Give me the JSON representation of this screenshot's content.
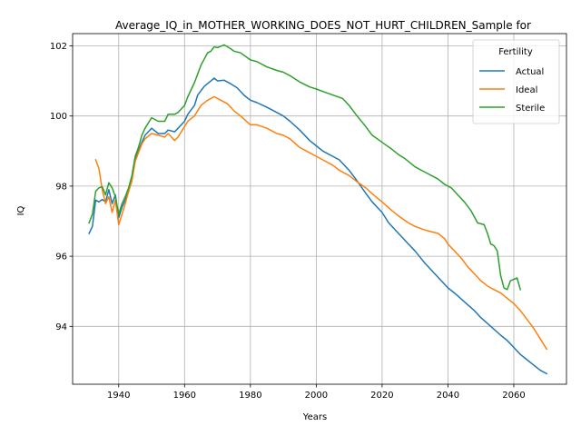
{
  "chart_data": {
    "type": "line",
    "title": "Average_IQ_in_MOTHER_WORKING_DOES_NOT_HURT_CHILDREN_Sample for",
    "xlabel": "Years",
    "ylabel": "IQ",
    "xlim": [
      1926,
      2076
    ],
    "ylim": [
      92.35,
      102.35
    ],
    "xticks": [
      1940,
      1960,
      1980,
      2000,
      2020,
      2040,
      2060
    ],
    "yticks": [
      94,
      96,
      98,
      100,
      102
    ],
    "grid": true,
    "legend": {
      "title": "Fertility",
      "placement": "top-right"
    },
    "series": [
      {
        "name": "Actual",
        "color": "#1f77b4",
        "points": [
          [
            1931,
            96.65
          ],
          [
            1932,
            96.85
          ],
          [
            1933,
            97.6
          ],
          [
            1934,
            97.55
          ],
          [
            1935,
            97.62
          ],
          [
            1936,
            97.55
          ],
          [
            1937,
            97.9
          ],
          [
            1938,
            97.5
          ],
          [
            1939,
            97.75
          ],
          [
            1940,
            97.1
          ],
          [
            1941,
            97.4
          ],
          [
            1942,
            97.6
          ],
          [
            1943,
            97.85
          ],
          [
            1944,
            98.2
          ],
          [
            1945,
            98.8
          ],
          [
            1946,
            99.0
          ],
          [
            1947,
            99.25
          ],
          [
            1948,
            99.45
          ],
          [
            1950,
            99.65
          ],
          [
            1952,
            99.5
          ],
          [
            1954,
            99.5
          ],
          [
            1955,
            99.6
          ],
          [
            1957,
            99.55
          ],
          [
            1958,
            99.65
          ],
          [
            1960,
            99.85
          ],
          [
            1961,
            100.05
          ],
          [
            1963,
            100.3
          ],
          [
            1964,
            100.6
          ],
          [
            1966,
            100.85
          ],
          [
            1968,
            101.0
          ],
          [
            1969,
            101.08
          ],
          [
            1970,
            101.0
          ],
          [
            1972,
            101.02
          ],
          [
            1974,
            100.92
          ],
          [
            1976,
            100.8
          ],
          [
            1978,
            100.6
          ],
          [
            1980,
            100.45
          ],
          [
            1982,
            100.38
          ],
          [
            1985,
            100.25
          ],
          [
            1988,
            100.1
          ],
          [
            1990,
            100.0
          ],
          [
            1992,
            99.85
          ],
          [
            1995,
            99.6
          ],
          [
            1998,
            99.3
          ],
          [
            2000,
            99.15
          ],
          [
            2002,
            99.0
          ],
          [
            2005,
            98.85
          ],
          [
            2007,
            98.75
          ],
          [
            2010,
            98.45
          ],
          [
            2012,
            98.2
          ],
          [
            2015,
            97.8
          ],
          [
            2017,
            97.55
          ],
          [
            2020,
            97.25
          ],
          [
            2022,
            96.95
          ],
          [
            2025,
            96.65
          ],
          [
            2028,
            96.35
          ],
          [
            2030,
            96.15
          ],
          [
            2033,
            95.8
          ],
          [
            2036,
            95.5
          ],
          [
            2038,
            95.3
          ],
          [
            2040,
            95.1
          ],
          [
            2042,
            94.95
          ],
          [
            2045,
            94.7
          ],
          [
            2048,
            94.45
          ],
          [
            2050,
            94.25
          ],
          [
            2053,
            94.0
          ],
          [
            2056,
            93.75
          ],
          [
            2058,
            93.6
          ],
          [
            2060,
            93.4
          ],
          [
            2062,
            93.2
          ],
          [
            2064,
            93.05
          ],
          [
            2066,
            92.9
          ],
          [
            2068,
            92.75
          ],
          [
            2070,
            92.65
          ]
        ]
      },
      {
        "name": "Ideal",
        "color": "#ff7f0e",
        "points": [
          [
            1933,
            98.75
          ],
          [
            1934,
            98.5
          ],
          [
            1935,
            97.9
          ],
          [
            1936,
            97.5
          ],
          [
            1937,
            97.7
          ],
          [
            1938,
            97.25
          ],
          [
            1939,
            97.6
          ],
          [
            1940,
            96.9
          ],
          [
            1941,
            97.2
          ],
          [
            1942,
            97.5
          ],
          [
            1943,
            97.85
          ],
          [
            1944,
            98.15
          ],
          [
            1945,
            98.7
          ],
          [
            1946,
            98.95
          ],
          [
            1947,
            99.2
          ],
          [
            1948,
            99.35
          ],
          [
            1950,
            99.5
          ],
          [
            1952,
            99.45
          ],
          [
            1954,
            99.4
          ],
          [
            1955,
            99.5
          ],
          [
            1957,
            99.3
          ],
          [
            1958,
            99.4
          ],
          [
            1960,
            99.7
          ],
          [
            1961,
            99.85
          ],
          [
            1963,
            100.0
          ],
          [
            1965,
            100.3
          ],
          [
            1967,
            100.45
          ],
          [
            1969,
            100.55
          ],
          [
            1971,
            100.45
          ],
          [
            1973,
            100.35
          ],
          [
            1975,
            100.15
          ],
          [
            1977,
            100.0
          ],
          [
            1980,
            99.75
          ],
          [
            1982,
            99.75
          ],
          [
            1985,
            99.65
          ],
          [
            1988,
            99.5
          ],
          [
            1990,
            99.45
          ],
          [
            1992,
            99.35
          ],
          [
            1995,
            99.1
          ],
          [
            1998,
            98.95
          ],
          [
            2000,
            98.85
          ],
          [
            2002,
            98.75
          ],
          [
            2005,
            98.6
          ],
          [
            2007,
            98.45
          ],
          [
            2010,
            98.3
          ],
          [
            2012,
            98.15
          ],
          [
            2015,
            97.95
          ],
          [
            2018,
            97.7
          ],
          [
            2020,
            97.55
          ],
          [
            2023,
            97.3
          ],
          [
            2025,
            97.15
          ],
          [
            2028,
            96.95
          ],
          [
            2030,
            96.85
          ],
          [
            2033,
            96.75
          ],
          [
            2035,
            96.7
          ],
          [
            2037,
            96.65
          ],
          [
            2039,
            96.5
          ],
          [
            2040,
            96.35
          ],
          [
            2042,
            96.15
          ],
          [
            2044,
            95.95
          ],
          [
            2046,
            95.7
          ],
          [
            2048,
            95.5
          ],
          [
            2050,
            95.3
          ],
          [
            2052,
            95.15
          ],
          [
            2054,
            95.05
          ],
          [
            2056,
            94.95
          ],
          [
            2058,
            94.8
          ],
          [
            2060,
            94.65
          ],
          [
            2062,
            94.45
          ],
          [
            2064,
            94.2
          ],
          [
            2066,
            93.95
          ],
          [
            2068,
            93.65
          ],
          [
            2070,
            93.35
          ]
        ]
      },
      {
        "name": "Sterile",
        "color": "#2ca02c",
        "points": [
          [
            1931,
            96.95
          ],
          [
            1932,
            97.2
          ],
          [
            1933,
            97.85
          ],
          [
            1934,
            97.95
          ],
          [
            1935,
            97.98
          ],
          [
            1936,
            97.75
          ],
          [
            1937,
            98.1
          ],
          [
            1938,
            97.95
          ],
          [
            1939,
            97.7
          ],
          [
            1940,
            97.2
          ],
          [
            1941,
            97.5
          ],
          [
            1942,
            97.7
          ],
          [
            1943,
            97.95
          ],
          [
            1944,
            98.3
          ],
          [
            1945,
            98.85
          ],
          [
            1946,
            99.1
          ],
          [
            1947,
            99.45
          ],
          [
            1948,
            99.65
          ],
          [
            1950,
            99.95
          ],
          [
            1952,
            99.85
          ],
          [
            1954,
            99.85
          ],
          [
            1955,
            100.05
          ],
          [
            1957,
            100.05
          ],
          [
            1958,
            100.1
          ],
          [
            1960,
            100.3
          ],
          [
            1961,
            100.55
          ],
          [
            1963,
            100.95
          ],
          [
            1965,
            101.45
          ],
          [
            1967,
            101.8
          ],
          [
            1968,
            101.85
          ],
          [
            1969,
            101.97
          ],
          [
            1970,
            101.95
          ],
          [
            1972,
            102.03
          ],
          [
            1974,
            101.92
          ],
          [
            1975,
            101.85
          ],
          [
            1977,
            101.8
          ],
          [
            1980,
            101.6
          ],
          [
            1982,
            101.55
          ],
          [
            1985,
            101.4
          ],
          [
            1988,
            101.3
          ],
          [
            1990,
            101.25
          ],
          [
            1992,
            101.15
          ],
          [
            1995,
            100.97
          ],
          [
            1998,
            100.83
          ],
          [
            2000,
            100.77
          ],
          [
            2002,
            100.7
          ],
          [
            2005,
            100.6
          ],
          [
            2008,
            100.5
          ],
          [
            2010,
            100.3
          ],
          [
            2012,
            100.05
          ],
          [
            2015,
            99.7
          ],
          [
            2017,
            99.45
          ],
          [
            2020,
            99.25
          ],
          [
            2023,
            99.05
          ],
          [
            2025,
            98.9
          ],
          [
            2027,
            98.78
          ],
          [
            2030,
            98.55
          ],
          [
            2033,
            98.4
          ],
          [
            2035,
            98.3
          ],
          [
            2037,
            98.2
          ],
          [
            2039,
            98.05
          ],
          [
            2041,
            97.95
          ],
          [
            2043,
            97.75
          ],
          [
            2045,
            97.55
          ],
          [
            2047,
            97.3
          ],
          [
            2049,
            96.95
          ],
          [
            2051,
            96.9
          ],
          [
            2052,
            96.65
          ],
          [
            2053,
            96.35
          ],
          [
            2054,
            96.3
          ],
          [
            2055,
            96.15
          ],
          [
            2056,
            95.45
          ],
          [
            2057,
            95.1
          ],
          [
            2058,
            95.05
          ],
          [
            2059,
            95.3
          ],
          [
            2061,
            95.38
          ],
          [
            2062,
            95.05
          ]
        ]
      }
    ]
  }
}
